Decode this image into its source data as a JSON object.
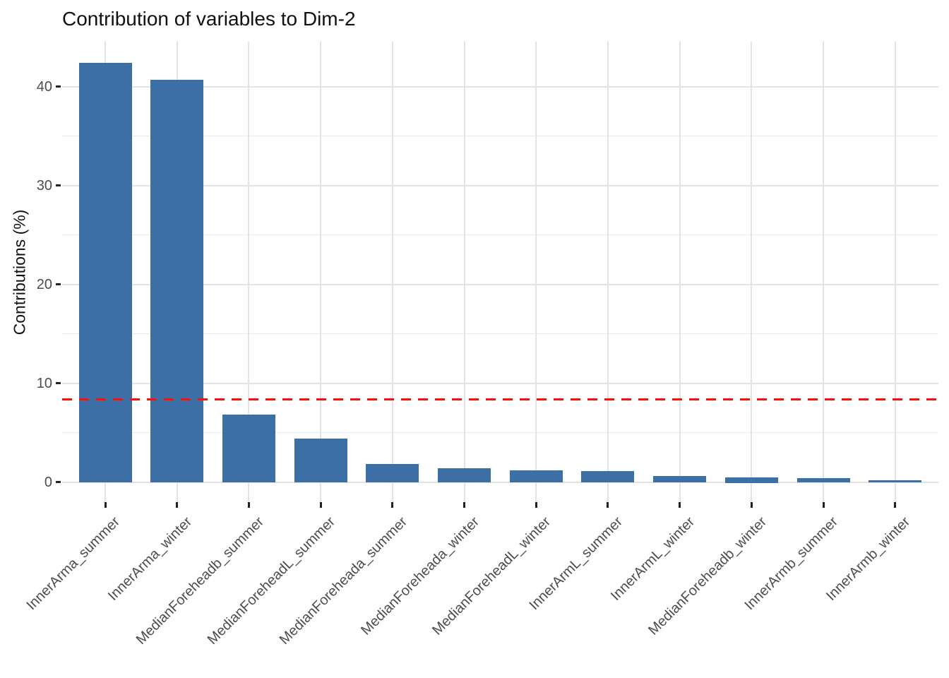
{
  "title": "Contribution of variables to Dim-2",
  "colors": {
    "bar_fill": "#3B6FA6",
    "reference_line": "#FD0D0C",
    "grid_major": "#E3E3E3",
    "grid_minor": "#E9E9E9",
    "tick_mark": "#222222",
    "tick_text": "#4D4D4D",
    "title_text": "#111111",
    "background": "#FFFFFF"
  },
  "chart_data": {
    "type": "bar",
    "title": "Contribution of variables to Dim-2",
    "xlabel": "",
    "ylabel": "Contributions (%)",
    "categories": [
      "InnerArma_summer",
      "InnerArma_winter",
      "MedianForeheadb_summer",
      "MedianForeheadL_summer",
      "MedianForeheada_summer",
      "MedianForeheada_winter",
      "MedianForeheadL_winter",
      "InnerArmL_summer",
      "InnerArmL_winter",
      "MedianForeheadb_winter",
      "InnerArmb_summer",
      "InnerArmb_winter"
    ],
    "values": [
      42.4,
      40.7,
      6.8,
      4.4,
      1.8,
      1.4,
      1.2,
      1.1,
      0.6,
      0.5,
      0.42,
      0.15
    ],
    "ylim": [
      0,
      44.5
    ],
    "yticks": [
      0,
      10,
      20,
      30,
      40
    ],
    "yticks_minor": [
      5,
      15,
      25,
      35
    ],
    "x_tick_rotation_deg": 45,
    "grid": "major and minor horizontal, major vertical per category",
    "legend": "none",
    "reference_line": {
      "value": 8.33,
      "style": "dashed",
      "color": "#FD0D0C"
    }
  }
}
